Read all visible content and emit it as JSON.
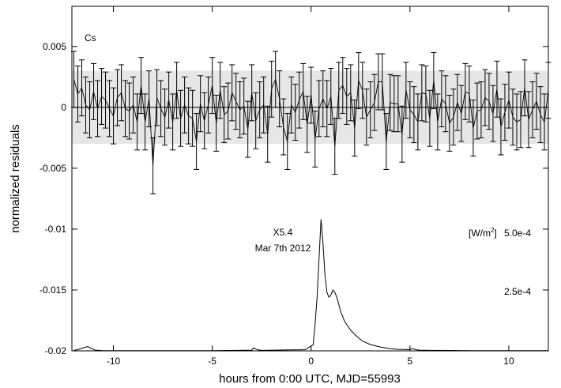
{
  "chart_data": {
    "type": "line",
    "xlabel": "hours from 0:00 UTC, MJD=55993",
    "ylabel": "normalized residuals",
    "xlim": [
      -12.1,
      12.0
    ],
    "ylim": [
      -0.02,
      0.0083
    ],
    "grid": false,
    "band": {
      "y_low": -0.003,
      "y_high": 0.003,
      "color": "#e6e6e6"
    },
    "x_ticks": [
      {
        "value": -10,
        "label": "-10"
      },
      {
        "value": -5,
        "label": "-5"
      },
      {
        "value": 0,
        "label": "0"
      },
      {
        "value": 5,
        "label": "5"
      },
      {
        "value": 10,
        "label": "10"
      }
    ],
    "y_ticks": [
      {
        "value": 0.005,
        "label": "0.005"
      },
      {
        "value": 0,
        "label": "0"
      },
      {
        "value": -0.005,
        "label": "-0.005"
      },
      {
        "value": -0.01,
        "label": "-0.01"
      },
      {
        "value": -0.015,
        "label": "-0.015"
      },
      {
        "value": -0.02,
        "label": "-0.02"
      }
    ],
    "series_label": "Cs",
    "errorbar_series": {
      "name": "",
      "x_start": -12.0,
      "x_step": 0.2,
      "y": [
        0.0023,
        0.0011,
        0.0016,
        0.0002,
        -0.0002,
        0.0013,
        -0.0001,
        0.0009,
        0.0006,
        -0.0001,
        -0.0007,
        0.0008,
        0.0012,
        -0.0001,
        -0.0003,
        0.0002,
        -0.0012,
        0.0018,
        -0.0012,
        0.0007,
        -0.0048,
        0.0008,
        -0.0001,
        -0.0008,
        0.0006,
        -0.0012,
        0.0014,
        -0.0009,
        0.0002,
        -0.0007,
        -0.0009,
        -0.0028,
        0.0003,
        -0.0011,
        0.0002,
        0.0018,
        -0.0013,
        0.0014,
        -0.0006,
        -0.0003,
        0.0012,
        0.0005,
        -0.0002,
        0.0001,
        -0.0018,
        0.0012,
        -0.0011,
        -0.0002,
        0.0002,
        -0.0022,
        0.0015,
        0.0023,
        0.0007,
        -0.0016,
        -0.0028,
        0.0002,
        -0.0004,
        0.0006,
        0.0013,
        -0.0014,
        0.001,
        -0.0026,
        -0.0001,
        0.0007,
        -0.0001,
        0.0009,
        -0.0032,
        0.0014,
        0.0018,
        0.0009,
        0.0012,
        -0.0017,
        0.0022,
        0.0014,
        -0.0008,
        -0.0002,
        0.0004,
        0.0021,
        0.0021,
        -0.0028,
        0.0004,
        0.0003,
        0.0003,
        -0.0022,
        0.0014,
        -0.0002,
        -0.0006,
        -0.0012,
        0.0012,
        0.0011,
        -0.0009,
        0.0022,
        -0.0012,
        0.0007,
        0.0003,
        -0.0013,
        -0.0008,
        0.0004,
        -0.0005,
        0.0013,
        0.0011,
        -0.0017,
        -0.0003,
        -0.0002,
        0.0008,
        0.0005,
        -0.0005,
        0.0015,
        -0.0016,
        -0.0004,
        0.0006,
        -0.0008,
        -0.0012,
        -0.001,
        0.0016,
        -0.001,
        -0.0002,
        0.0005,
        -0.0006,
        -0.0012,
        0.0014
      ],
      "err": 0.0023
    },
    "flare": {
      "label_class": "X5.4",
      "label_date": "Mar 7th 2012",
      "unit_label_main": "[W/m",
      "unit_label_sup": "2",
      "unit_label_end": "]",
      "right_axis_ticks": [
        {
          "value": 0.0005,
          "label": "5.0e-4"
        },
        {
          "value": 0.00025,
          "label": "2.5e-4"
        }
      ],
      "scale": {
        "flux_min": 0,
        "flux_max": 0.0005,
        "res_at_flux_min": -0.02,
        "res_at_flux_max": -0.01
      },
      "x": [
        -12.0,
        -11.8,
        -11.5,
        -11.3,
        -11.1,
        -10.9,
        -10.5,
        -8.0,
        -5.0,
        -3.0,
        -2.9,
        -2.7,
        -2.5,
        -1.0,
        -0.3,
        0.0,
        0.1,
        0.2,
        0.3,
        0.4,
        0.5,
        0.6,
        0.7,
        0.8,
        0.9,
        1.0,
        1.1,
        1.2,
        1.3,
        1.4,
        1.5,
        1.7,
        2.0,
        2.3,
        2.6,
        3.0,
        3.5,
        4.0,
        4.5,
        5.0,
        5.1,
        5.3,
        5.5,
        6.0,
        7.0,
        8.0,
        9.0,
        10.0,
        11.0,
        12.0
      ],
      "flux": [
        2e-06,
        5e-06,
        1.3e-05,
        1.8e-05,
        9e-06,
        3e-06,
        1e-06,
        1e-06,
        1e-06,
        3e-06,
        1.2e-05,
        4e-06,
        2e-06,
        4e-06,
        5e-06,
        2e-05,
        2.5e-05,
        0.00011,
        0.00022,
        0.00038,
        0.00054,
        0.00044,
        0.00031,
        0.00024,
        0.00022,
        0.00023,
        0.00025,
        0.00024,
        0.00022,
        0.00019,
        0.00016,
        0.00012,
        8.5e-05,
        6e-05,
        4e-05,
        2.6e-05,
        1.6e-05,
        9e-06,
        6e-06,
        5e-06,
        1e-05,
        5e-06,
        3e-06,
        2e-06,
        1.5e-06,
        1e-06,
        1e-06,
        1e-06,
        1e-06,
        1e-06
      ]
    }
  }
}
